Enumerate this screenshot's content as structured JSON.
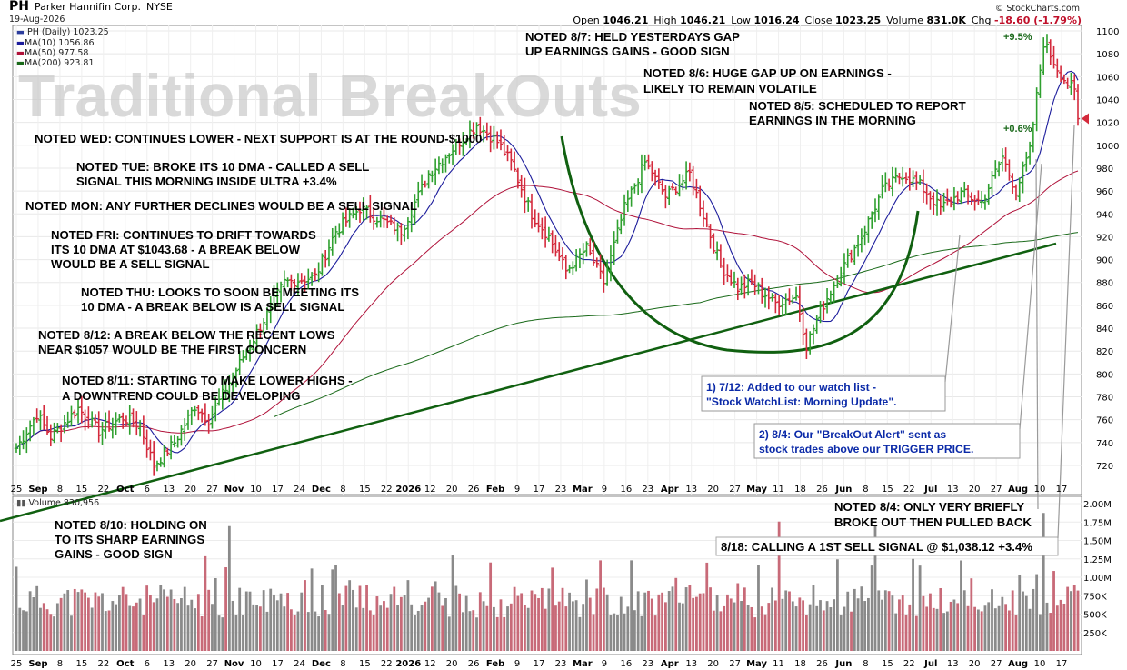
{
  "header": {
    "ticker": "PH",
    "company": "Parker Hannifin Corp.",
    "exchange": "NYSE",
    "date": "19-Aug-2026",
    "open_label": "Open",
    "open": "1046.21",
    "high_label": "High",
    "high": "1046.21",
    "low_label": "Low",
    "low": "1016.24",
    "close_label": "Close",
    "close": "1023.25",
    "volume_label": "Volume",
    "volume": "831.0K",
    "chg_label": "Chg",
    "chg": "-18.60 (-1.79%)",
    "source": "© StockCharts.com"
  },
  "legend": {
    "price": "PH (Daily) 1023.25",
    "ma10": "MA(10) 1056.86",
    "ma50": "MA(50) 977.58",
    "ma200": "MA(200) 923.81",
    "volume": "Volume 830,956"
  },
  "colors": {
    "up": "#2fa02f",
    "down": "#d42a3c",
    "ma10": "#1c1c9c",
    "ma50": "#b0123a",
    "ma200": "#1a6a1a",
    "trend": "#106010",
    "vol_up": "#8a8a8a",
    "vol_down": "#c86a78",
    "callout": "#0b2aa8"
  },
  "watermark": "Traditional BreakOuts",
  "notes": [
    "NOTED 8/7: HELD YESTERDAYS GAP",
    "UP EARNINGS GAINS - GOOD SIGN",
    "NOTED 8/6: HUGE GAP UP ON EARNINGS -",
    "LIKELY TO REMAIN VOLATILE",
    "NOTED 8/5: SCHEDULED TO REPORT",
    "EARNINGS IN THE MORNING",
    "NOTED WED: CONTINUES LOWER - NEXT SUPPORT IS AT THE ROUND-$1000",
    "NOTED TUE: BROKE ITS 10 DMA - CALLED A SELL",
    "SIGNAL THIS MORNING INSIDE ULTRA +3.4%",
    "NOTED MON: ANY FURTHER DECLINES WOULD BE A SELL SIGNAL",
    "NOTED FRI: CONTINUES TO DRIFT TOWARDS",
    "ITS 10 DMA AT $1043.68 - A BREAK BELOW",
    "WOULD BE A SELL SIGNAL",
    "NOTED THU: LOOKS TO SOON BE MEETING ITS",
    "10 DMA - A BREAK BELOW IS A SELL SIGNAL",
    "NOTED 8/12: A BREAK BELOW THE RECENT LOWS",
    "NEAR $1057 WOULD BE THE FIRST CONCERN",
    "NOTED 8/11: STARTING TO MAKE LOWER HIGHS -",
    "A DOWNTREND COULD BE DEVELOPING",
    "NOTED 8/10: HOLDING ON",
    "TO ITS SHARP EARNINGS",
    "GAINS - GOOD SIGN",
    "NOTED 8/4: ONLY VERY BRIEFLY",
    "BROKE OUT THEN PULLED BACK",
    "8/18: CALLING A 1ST SELL SIGNAL @ $1,038.12  +3.4%"
  ],
  "callouts": [
    "1) 7/12: Added to our watch list -",
    "\"Stock WatchList: Morning Update\".",
    "2) 8/4: Our \"BreakOut Alert\" sent as",
    "stock trades above our TRIGGER PRICE."
  ],
  "pct_labels": [
    "+9.5%",
    "+0.6%"
  ],
  "chart_data": {
    "type": "ohlc",
    "title": "PH Parker Hannifin Corp. NYSE",
    "price_ylim": [
      705,
      1105
    ],
    "price_ticks": [
      "720",
      "740",
      "760",
      "780",
      "800",
      "820",
      "840",
      "860",
      "880",
      "900",
      "920",
      "940",
      "960",
      "980",
      "1000",
      "1020",
      "1040",
      "1060",
      "1080",
      "1100"
    ],
    "volume_ticks": [
      "250K",
      "500K",
      "750K",
      "1.00M",
      "1.25M",
      "1.50M",
      "1.75M",
      "2.00M"
    ],
    "x_tick_labels": [
      "25",
      "Sep",
      "8",
      "15",
      "22",
      "Oct",
      "6",
      "13",
      "20",
      "27",
      "Nov",
      "10",
      "17",
      "24",
      "Dec",
      "8",
      "15",
      "22",
      "2026",
      "12",
      "20",
      "26",
      "Feb",
      "9",
      "17",
      "23",
      "Mar",
      "9",
      "16",
      "23",
      "Apr",
      "13",
      "20",
      "27",
      "May",
      "11",
      "18",
      "26",
      "Jun",
      "8",
      "15",
      "22",
      "Jul",
      "13",
      "20",
      "27",
      "Aug",
      "10",
      "17"
    ],
    "bold_ticks": [
      "Sep",
      "Oct",
      "Nov",
      "Dec",
      "2026",
      "Feb",
      "Mar",
      "Apr",
      "May",
      "Jun",
      "Jul",
      "Aug"
    ],
    "anchors": [
      [
        0,
        735
      ],
      [
        6,
        765
      ],
      [
        10,
        745
      ],
      [
        18,
        770
      ],
      [
        24,
        750
      ],
      [
        31,
        762
      ],
      [
        36,
        755
      ],
      [
        40,
        720
      ],
      [
        46,
        740
      ],
      [
        52,
        772
      ],
      [
        56,
        760
      ],
      [
        78,
        880
      ],
      [
        87,
        885
      ],
      [
        93,
        925
      ],
      [
        100,
        945
      ],
      [
        112,
        925
      ],
      [
        120,
        975
      ],
      [
        128,
        1000
      ],
      [
        134,
        1018
      ],
      [
        140,
        1003
      ],
      [
        144,
        985
      ],
      [
        150,
        940
      ],
      [
        155,
        920
      ],
      [
        160,
        890
      ],
      [
        166,
        910
      ],
      [
        171,
        880
      ],
      [
        177,
        945
      ],
      [
        183,
        985
      ],
      [
        189,
        955
      ],
      [
        196,
        975
      ],
      [
        201,
        930
      ],
      [
        205,
        895
      ],
      [
        210,
        875
      ],
      [
        214,
        880
      ],
      [
        221,
        862
      ],
      [
        227,
        868
      ],
      [
        230,
        825
      ],
      [
        234,
        855
      ],
      [
        240,
        890
      ],
      [
        246,
        920
      ],
      [
        252,
        960
      ],
      [
        258,
        975
      ],
      [
        263,
        965
      ],
      [
        269,
        945
      ],
      [
        275,
        958
      ],
      [
        281,
        950
      ],
      [
        287,
        990
      ],
      [
        291,
        960
      ],
      [
        295,
        995
      ],
      [
        299,
        1090
      ],
      [
        304,
        1062
      ],
      [
        308,
        1046
      ],
      [
        309,
        1023
      ]
    ],
    "ma10_last": 1056.86,
    "ma50_last": 977.58,
    "ma200_last": 923.81,
    "last_close": 1023.25
  }
}
